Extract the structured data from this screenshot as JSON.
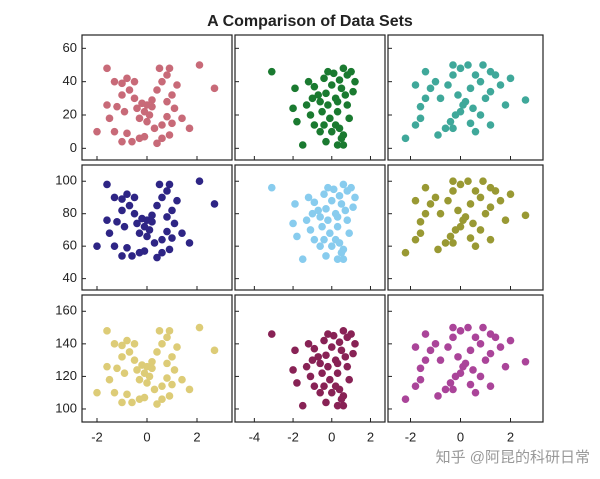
{
  "title": "A Comparison of Data Sets",
  "watermark": "知乎 @阿昆的科研日常",
  "chart_data": [
    {
      "type": "scatter",
      "color": "#c86a78",
      "xlim": [
        -2.6,
        3.4
      ],
      "ylim": [
        -7,
        68
      ],
      "xticks": [
        -2,
        0,
        2
      ],
      "yticks": [
        0,
        20,
        40,
        60
      ],
      "x": [
        -1.6,
        -1.3,
        -1.0,
        -0.8,
        -0.7,
        -1.0,
        -0.5,
        -1.6,
        -1.2,
        -0.9,
        -0.4,
        -0.2,
        0.0,
        0.2,
        -0.1,
        0.1,
        -0.3,
        0.3,
        0.0,
        -1.5,
        -1.3,
        -2.0,
        -0.8,
        -1.0,
        -0.6,
        -0.3,
        -0.1,
        0.4,
        0.6,
        0.9,
        1.0,
        0.6,
        0.8,
        0.2,
        0.4,
        0.6,
        0.8,
        0.5,
        0.9,
        1.2,
        1.0,
        0.8,
        1.4,
        1.7,
        2.1,
        2.7,
        1.1,
        -0.5
      ],
      "values": [
        48,
        40,
        39,
        42,
        35,
        32,
        30,
        26,
        25,
        22,
        24,
        27,
        26,
        25,
        22,
        20,
        18,
        12,
        16,
        18,
        10,
        10,
        9,
        4,
        4,
        6,
        7,
        3,
        6,
        8,
        15,
        14,
        19,
        29,
        35,
        40,
        44,
        48,
        48,
        38,
        32,
        28,
        18,
        12,
        50,
        36,
        24,
        40
      ]
    },
    {
      "type": "scatter",
      "color": "#1a7a30",
      "xlim": [
        -5,
        2.75
      ],
      "ylim": [
        -7,
        68
      ],
      "xticks": [
        -4,
        -2,
        0,
        2
      ],
      "yticks": [
        0,
        20,
        40,
        60
      ],
      "x": [
        -3.1,
        -1.9,
        -2.0,
        -1.8,
        -1.5,
        -1.2,
        -1.0,
        -0.9,
        -0.6,
        -0.5,
        -0.4,
        -0.3,
        -0.2,
        -0.1,
        0.0,
        0.1,
        0.2,
        0.3,
        0.4,
        0.5,
        0.6,
        0.7,
        0.8,
        1.0,
        1.2,
        0.9,
        0.6,
        0.3,
        -0.3,
        -0.6,
        -0.9,
        -1.1,
        -0.7,
        -0.4,
        0.0,
        0.2,
        0.5,
        0.6,
        -0.2,
        0.4,
        0.8,
        -1.3,
        1.1,
        0.3
      ],
      "values": [
        46,
        36,
        24,
        16,
        2,
        40,
        30,
        37,
        28,
        22,
        42,
        33,
        26,
        18,
        38,
        45,
        30,
        22,
        12,
        36,
        48,
        32,
        26,
        46,
        40,
        18,
        8,
        2,
        4,
        10,
        14,
        20,
        32,
        14,
        10,
        14,
        6,
        2,
        46,
        41,
        44,
        26,
        34,
        28
      ]
    },
    {
      "type": "scatter",
      "color": "#3fa89a",
      "xlim": [
        -2.9,
        3.3
      ],
      "ylim": [
        -7,
        68
      ],
      "xticks": [
        -2,
        0,
        2
      ],
      "yticks": [
        0,
        20,
        40,
        60
      ],
      "x": [
        -2.2,
        -1.8,
        -1.6,
        -1.4,
        -1.2,
        -1.0,
        -0.8,
        -1.4,
        -1.8,
        -0.5,
        -0.3,
        -0.6,
        -0.4,
        -0.2,
        0.0,
        -0.9,
        -0.3,
        0.2,
        0.4,
        0.0,
        -0.3,
        0.3,
        0.6,
        0.8,
        1.2,
        1.0,
        0.6,
        0.5,
        0.8,
        1.2,
        1.4,
        1.6,
        2.0,
        2.6,
        1.8,
        1.2,
        0.1,
        -0.1,
        -1.6,
        0.9,
        0.4
      ],
      "values": [
        6,
        14,
        25,
        30,
        36,
        40,
        30,
        46,
        38,
        38,
        44,
        12,
        16,
        20,
        22,
        8,
        12,
        28,
        36,
        48,
        50,
        50,
        44,
        40,
        46,
        30,
        10,
        24,
        20,
        34,
        44,
        38,
        42,
        29,
        26,
        14,
        26,
        32,
        18,
        50,
        15
      ]
    },
    {
      "type": "scatter",
      "color": "#2e2585",
      "xlim": [
        -2.6,
        3.4
      ],
      "ylim": [
        33,
        110
      ],
      "xticks": [
        -2,
        0,
        2
      ],
      "yticks": [
        40,
        60,
        80,
        100
      ],
      "x": [
        -1.6,
        -1.3,
        -1.0,
        -0.8,
        -0.7,
        -1.0,
        -0.5,
        -1.6,
        -1.2,
        -0.9,
        -0.4,
        -0.2,
        0.0,
        0.2,
        -0.1,
        0.1,
        -0.3,
        0.3,
        0.0,
        -1.5,
        -1.3,
        -2.0,
        -0.8,
        -1.0,
        -0.6,
        -0.3,
        -0.1,
        0.4,
        0.6,
        0.9,
        1.0,
        0.6,
        0.8,
        0.2,
        0.4,
        0.6,
        0.8,
        0.5,
        0.9,
        1.2,
        1.0,
        0.8,
        1.4,
        1.7,
        2.1,
        2.7,
        1.1,
        -0.5
      ],
      "values": [
        98,
        90,
        89,
        92,
        85,
        82,
        80,
        76,
        75,
        72,
        74,
        77,
        76,
        75,
        72,
        70,
        68,
        62,
        66,
        68,
        60,
        60,
        59,
        54,
        54,
        56,
        57,
        53,
        56,
        58,
        65,
        64,
        69,
        79,
        85,
        90,
        94,
        98,
        98,
        88,
        82,
        78,
        68,
        62,
        100,
        86,
        74,
        90
      ]
    },
    {
      "type": "scatter",
      "color": "#88ccee",
      "xlim": [
        -5,
        2.75
      ],
      "ylim": [
        33,
        110
      ],
      "xticks": [
        -4,
        -2,
        0,
        2
      ],
      "yticks": [
        40,
        60,
        80,
        100
      ],
      "x": [
        -3.1,
        -1.9,
        -2.0,
        -1.8,
        -1.5,
        -1.2,
        -1.0,
        -0.9,
        -0.6,
        -0.5,
        -0.4,
        -0.3,
        -0.2,
        -0.1,
        0.0,
        0.1,
        0.2,
        0.3,
        0.4,
        0.5,
        0.6,
        0.7,
        0.8,
        1.0,
        1.2,
        0.9,
        0.6,
        0.3,
        -0.3,
        -0.6,
        -0.9,
        -1.1,
        -0.7,
        -0.4,
        0.0,
        0.2,
        0.5,
        0.6,
        -0.2,
        0.4,
        0.8,
        -1.3,
        1.1,
        0.3
      ],
      "values": [
        96,
        86,
        74,
        66,
        52,
        90,
        80,
        87,
        78,
        72,
        92,
        83,
        76,
        68,
        88,
        95,
        80,
        72,
        62,
        86,
        98,
        82,
        76,
        96,
        90,
        68,
        58,
        52,
        54,
        60,
        64,
        70,
        82,
        64,
        60,
        64,
        56,
        52,
        96,
        91,
        94,
        76,
        84,
        78
      ]
    },
    {
      "type": "scatter",
      "color": "#999933",
      "xlim": [
        -2.9,
        3.3
      ],
      "ylim": [
        33,
        110
      ],
      "xticks": [
        -2,
        0,
        2
      ],
      "yticks": [
        40,
        60,
        80,
        100
      ],
      "x": [
        -2.2,
        -1.8,
        -1.6,
        -1.4,
        -1.2,
        -1.0,
        -0.8,
        -1.4,
        -1.8,
        -0.5,
        -0.3,
        -0.6,
        -0.4,
        -0.2,
        0.0,
        -0.9,
        -0.3,
        0.2,
        0.4,
        0.0,
        -0.3,
        0.3,
        0.6,
        0.8,
        1.2,
        1.0,
        0.6,
        0.5,
        0.8,
        1.2,
        1.4,
        1.6,
        2.0,
        2.6,
        1.8,
        1.2,
        0.1,
        -0.1,
        -1.6,
        0.9,
        0.4
      ],
      "values": [
        56,
        64,
        75,
        80,
        86,
        90,
        80,
        96,
        88,
        88,
        94,
        62,
        66,
        70,
        72,
        58,
        62,
        78,
        86,
        98,
        100,
        100,
        94,
        90,
        96,
        80,
        60,
        74,
        70,
        84,
        94,
        88,
        92,
        79,
        76,
        64,
        76,
        82,
        68,
        100,
        65
      ]
    },
    {
      "type": "scatter",
      "color": "#ddcc77",
      "xlim": [
        -2.6,
        3.4
      ],
      "ylim": [
        92,
        170
      ],
      "xticks": [
        -2,
        0,
        2
      ],
      "yticks": [
        100,
        120,
        140,
        160
      ],
      "x": [
        -1.6,
        -1.3,
        -1.0,
        -0.8,
        -0.7,
        -1.0,
        -0.5,
        -1.6,
        -1.2,
        -0.9,
        -0.4,
        -0.2,
        0.0,
        0.2,
        -0.1,
        0.1,
        -0.3,
        0.3,
        0.0,
        -1.5,
        -1.3,
        -2.0,
        -0.8,
        -1.0,
        -0.6,
        -0.3,
        -0.1,
        0.4,
        0.6,
        0.9,
        1.0,
        0.6,
        0.8,
        0.2,
        0.4,
        0.6,
        0.8,
        0.5,
        0.9,
        1.2,
        1.0,
        0.8,
        1.4,
        1.7,
        2.1,
        2.7,
        1.1,
        -0.5
      ],
      "values": [
        148,
        140,
        139,
        142,
        135,
        132,
        130,
        126,
        125,
        122,
        124,
        127,
        126,
        125,
        122,
        120,
        118,
        112,
        116,
        118,
        110,
        110,
        109,
        104,
        104,
        106,
        107,
        103,
        106,
        108,
        115,
        114,
        119,
        129,
        135,
        140,
        144,
        148,
        148,
        138,
        132,
        128,
        118,
        112,
        150,
        136,
        124,
        140
      ]
    },
    {
      "type": "scatter",
      "color": "#882255",
      "xlim": [
        -5,
        2.75
      ],
      "ylim": [
        92,
        170
      ],
      "xticks": [
        -4,
        -2,
        0,
        2
      ],
      "yticks": [
        100,
        120,
        140,
        160
      ],
      "x": [
        -3.1,
        -1.9,
        -2.0,
        -1.8,
        -1.5,
        -1.2,
        -1.0,
        -0.9,
        -0.6,
        -0.5,
        -0.4,
        -0.3,
        -0.2,
        -0.1,
        0.0,
        0.1,
        0.2,
        0.3,
        0.4,
        0.5,
        0.6,
        0.7,
        0.8,
        1.0,
        1.2,
        0.9,
        0.6,
        0.3,
        -0.3,
        -0.6,
        -0.9,
        -1.1,
        -0.7,
        -0.4,
        0.0,
        0.2,
        0.5,
        0.6,
        -0.2,
        0.4,
        0.8,
        -1.3,
        1.1,
        0.3
      ],
      "values": [
        146,
        136,
        124,
        116,
        102,
        140,
        130,
        137,
        128,
        122,
        142,
        133,
        126,
        118,
        138,
        145,
        130,
        122,
        112,
        136,
        148,
        132,
        126,
        146,
        140,
        118,
        108,
        102,
        104,
        110,
        114,
        120,
        132,
        114,
        110,
        114,
        106,
        102,
        146,
        141,
        144,
        126,
        134,
        128
      ]
    },
    {
      "type": "scatter",
      "color": "#aa4499",
      "xlim": [
        -2.9,
        3.3
      ],
      "ylim": [
        92,
        170
      ],
      "xticks": [
        -2,
        0,
        2
      ],
      "yticks": [
        100,
        120,
        140,
        160
      ],
      "x": [
        -2.2,
        -1.8,
        -1.6,
        -1.4,
        -1.2,
        -1.0,
        -0.8,
        -1.4,
        -1.8,
        -0.5,
        -0.3,
        -0.6,
        -0.4,
        -0.2,
        0.0,
        -0.9,
        -0.3,
        0.2,
        0.4,
        0.0,
        -0.3,
        0.3,
        0.6,
        0.8,
        1.2,
        1.0,
        0.6,
        0.5,
        0.8,
        1.2,
        1.4,
        1.6,
        2.0,
        2.6,
        1.8,
        1.2,
        0.1,
        -0.1,
        -1.6,
        0.9,
        0.4
      ],
      "values": [
        106,
        114,
        125,
        130,
        136,
        140,
        130,
        146,
        138,
        138,
        144,
        112,
        116,
        120,
        122,
        108,
        112,
        128,
        136,
        148,
        150,
        150,
        144,
        140,
        146,
        130,
        110,
        124,
        120,
        134,
        144,
        138,
        142,
        129,
        126,
        114,
        126,
        132,
        118,
        150,
        115
      ]
    }
  ]
}
